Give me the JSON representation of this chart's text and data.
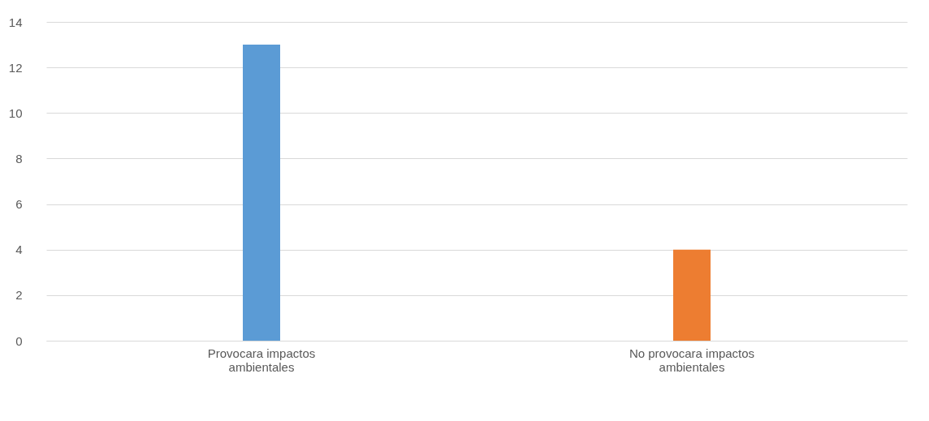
{
  "chart_data": {
    "type": "bar",
    "categories": [
      "Provocara impactos ambientales",
      "No provocara impactos ambientales"
    ],
    "values": [
      13,
      4
    ],
    "colors": [
      "#5b9bd5",
      "#ed7d31"
    ],
    "ylim": [
      0,
      14
    ],
    "yticks": [
      0,
      2,
      4,
      6,
      8,
      10,
      12,
      14
    ],
    "grid": "y"
  }
}
